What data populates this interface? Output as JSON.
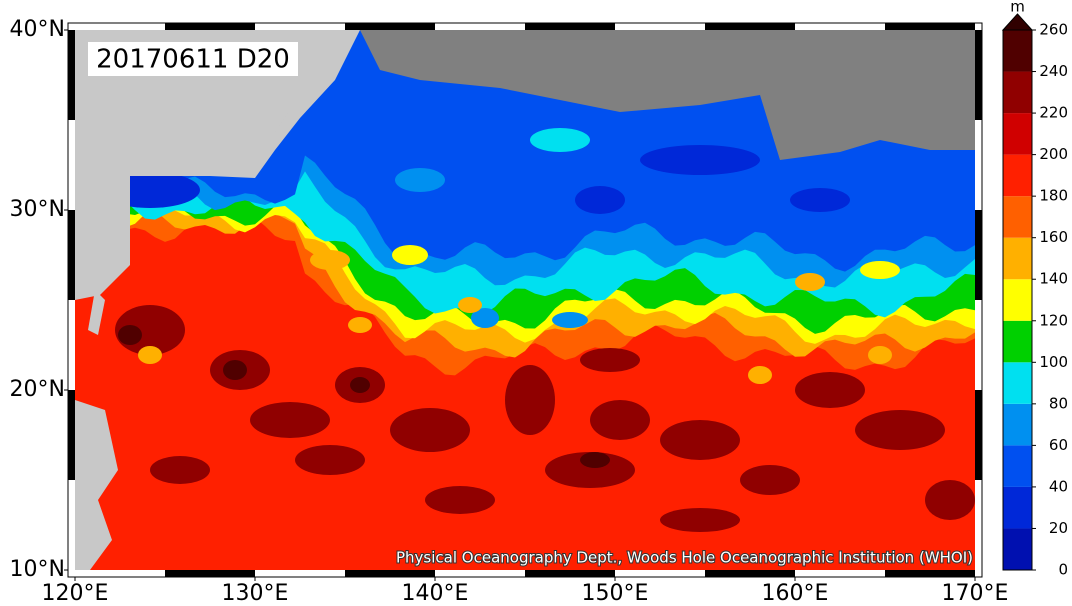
{
  "map": {
    "title": "20170611 D20",
    "credit": "Physical Oceanography Dept., Woods Hole Oceanographic Institution (WHOI)",
    "lonlim": [
      120,
      170
    ],
    "latlim": [
      10,
      40
    ],
    "lon_ticks": [
      {
        "value": 120,
        "label": "120°E"
      },
      {
        "value": 130,
        "label": "130°E"
      },
      {
        "value": 140,
        "label": "140°E"
      },
      {
        "value": 150,
        "label": "150°E"
      },
      {
        "value": 160,
        "label": "160°E"
      },
      {
        "value": 170,
        "label": "170°E"
      }
    ],
    "lat_ticks": [
      {
        "value": 10,
        "label": "10°N"
      },
      {
        "value": 20,
        "label": "20°N"
      },
      {
        "value": 30,
        "label": "30°N"
      },
      {
        "value": 40,
        "label": "40°N"
      }
    ],
    "colorbar": {
      "unit": "m",
      "ticks": [
        0,
        20,
        40,
        60,
        80,
        100,
        120,
        140,
        160,
        180,
        200,
        220,
        240,
        260
      ],
      "colors": [
        "#0010b0",
        "#0028d8",
        "#0050f0",
        "#0090f0",
        "#00e0f0",
        "#00d000",
        "#ffff00",
        "#ffb000",
        "#ff6000",
        "#ff2000",
        "#d00000",
        "#900000",
        "#500000"
      ],
      "extend_color": "#300000"
    }
  }
}
